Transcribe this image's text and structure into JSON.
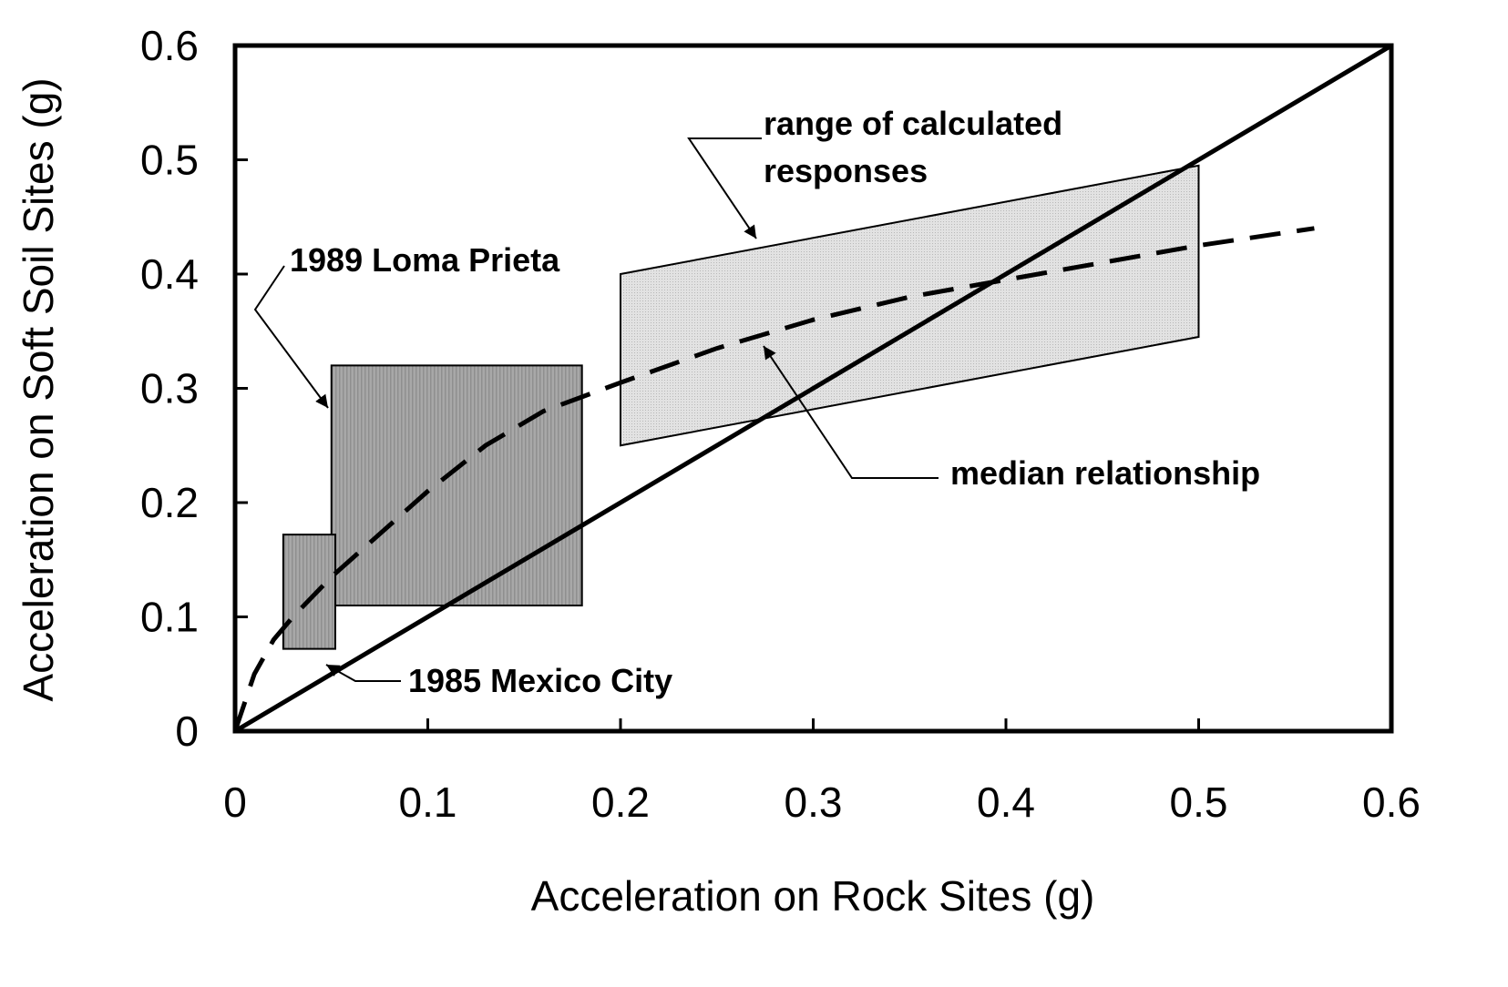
{
  "chart_data": {
    "type": "line",
    "xlabel": "Acceleration on Rock Sites (g)",
    "ylabel": "Acceleration on Soft Soil Sites (g)",
    "xlim": [
      0,
      0.6
    ],
    "ylim": [
      0,
      0.6
    ],
    "xticks": [
      0,
      0.1,
      0.2,
      0.3,
      0.4,
      0.5,
      0.6
    ],
    "yticks": [
      0,
      0.1,
      0.2,
      0.3,
      0.4,
      0.5,
      0.6
    ],
    "grid": false,
    "lines": [
      {
        "style": "solid",
        "color": "#000000",
        "x": [
          0,
          0.6
        ],
        "y": [
          0,
          0.6
        ]
      },
      {
        "style": "dashed",
        "color": "#000000",
        "x": [
          0,
          0.01,
          0.02,
          0.03,
          0.05,
          0.07,
          0.1,
          0.13,
          0.16,
          0.2,
          0.25,
          0.3,
          0.35,
          0.4,
          0.45,
          0.5,
          0.56
        ],
        "y": [
          0,
          0.05,
          0.08,
          0.1,
          0.135,
          0.165,
          0.21,
          0.25,
          0.28,
          0.305,
          0.335,
          0.36,
          0.38,
          0.395,
          0.41,
          0.425,
          0.44
        ]
      }
    ],
    "regions": [
      {
        "color": "#d9d9d9",
        "x": [
          0.2,
          0.2,
          0.5,
          0.5
        ],
        "y": [
          0.25,
          0.4,
          0.495,
          0.345
        ]
      },
      {
        "color": "#a6a6a6",
        "x": [
          0.05,
          0.05,
          0.18,
          0.18
        ],
        "y": [
          0.11,
          0.32,
          0.32,
          0.11
        ]
      },
      {
        "color": "#a6a6a6",
        "x": [
          0.025,
          0.025,
          0.052,
          0.052
        ],
        "y": [
          0.072,
          0.172,
          0.172,
          0.072
        ]
      }
    ],
    "annotations": [
      {
        "text": [
          "range of calculated",
          "responses"
        ]
      },
      {
        "text": [
          "1989 Loma Prieta"
        ]
      },
      {
        "text": [
          "median relationship"
        ]
      },
      {
        "text": [
          "1985 Mexico City"
        ]
      }
    ]
  }
}
